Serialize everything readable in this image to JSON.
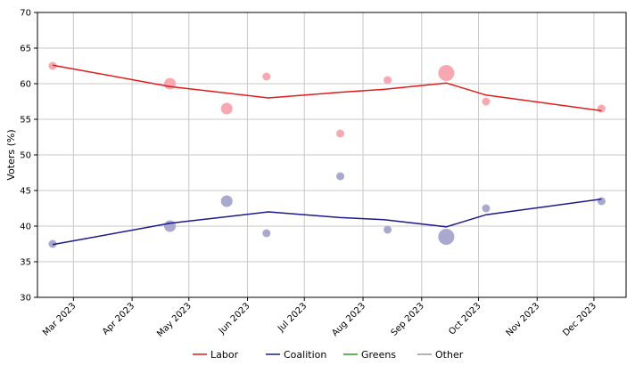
{
  "chart_data": {
    "type": "line",
    "title": "",
    "xlabel": "",
    "ylabel": "Voters (%)",
    "ylim": [
      30,
      70
    ],
    "yticks": [
      30,
      35,
      40,
      45,
      50,
      55,
      60,
      65,
      70
    ],
    "xlim": [
      "2023-02-10",
      "2023-12-18"
    ],
    "xticks": [
      {
        "date": "2023-03-01",
        "label": "Mar 2023"
      },
      {
        "date": "2023-04-01",
        "label": "Apr 2023"
      },
      {
        "date": "2023-05-01",
        "label": "May 2023"
      },
      {
        "date": "2023-06-01",
        "label": "Jun 2023"
      },
      {
        "date": "2023-07-01",
        "label": "Jul 2023"
      },
      {
        "date": "2023-08-01",
        "label": "Aug 2023"
      },
      {
        "date": "2023-09-01",
        "label": "Sep 2023"
      },
      {
        "date": "2023-10-01",
        "label": "Oct 2023"
      },
      {
        "date": "2023-11-01",
        "label": "Nov 2023"
      },
      {
        "date": "2023-12-01",
        "label": "Dec 2023"
      }
    ],
    "grid": true,
    "legend_position": "bottom",
    "series": [
      {
        "name": "Labor",
        "color": "#e31a1c",
        "dot_color": "#f7a8b0",
        "trend": [
          {
            "x": "2023-02-18",
            "y": 62.6
          },
          {
            "x": "2023-04-21",
            "y": 59.6
          },
          {
            "x": "2023-06-12",
            "y": 58.0
          },
          {
            "x": "2023-07-20",
            "y": 58.8
          },
          {
            "x": "2023-08-12",
            "y": 59.2
          },
          {
            "x": "2023-09-14",
            "y": 60.1
          },
          {
            "x": "2023-10-05",
            "y": 58.4
          },
          {
            "x": "2023-12-05",
            "y": 56.2
          }
        ],
        "points": [
          {
            "x": "2023-02-18",
            "y": 62.5,
            "size": "small"
          },
          {
            "x": "2023-04-21",
            "y": 60.0,
            "size": "medium"
          },
          {
            "x": "2023-05-21",
            "y": 56.5,
            "size": "medium"
          },
          {
            "x": "2023-06-11",
            "y": 61.0,
            "size": "small"
          },
          {
            "x": "2023-07-20",
            "y": 53.0,
            "size": "small"
          },
          {
            "x": "2023-08-14",
            "y": 60.5,
            "size": "small"
          },
          {
            "x": "2023-09-14",
            "y": 61.5,
            "size": "large"
          },
          {
            "x": "2023-10-05",
            "y": 57.5,
            "size": "small"
          },
          {
            "x": "2023-12-05",
            "y": 56.5,
            "size": "small"
          }
        ]
      },
      {
        "name": "Coalition",
        "color": "#1a1a8c",
        "dot_color": "#a9a9cf",
        "trend": [
          {
            "x": "2023-02-18",
            "y": 37.4
          },
          {
            "x": "2023-04-21",
            "y": 40.4
          },
          {
            "x": "2023-06-12",
            "y": 42.0
          },
          {
            "x": "2023-07-20",
            "y": 41.2
          },
          {
            "x": "2023-08-12",
            "y": 40.9
          },
          {
            "x": "2023-09-14",
            "y": 39.9
          },
          {
            "x": "2023-10-05",
            "y": 41.6
          },
          {
            "x": "2023-12-05",
            "y": 43.8
          }
        ],
        "points": [
          {
            "x": "2023-02-18",
            "y": 37.5,
            "size": "small"
          },
          {
            "x": "2023-04-21",
            "y": 40.0,
            "size": "medium"
          },
          {
            "x": "2023-05-21",
            "y": 43.5,
            "size": "medium"
          },
          {
            "x": "2023-06-11",
            "y": 39.0,
            "size": "small"
          },
          {
            "x": "2023-07-20",
            "y": 47.0,
            "size": "small"
          },
          {
            "x": "2023-08-14",
            "y": 39.5,
            "size": "small"
          },
          {
            "x": "2023-09-14",
            "y": 38.5,
            "size": "large"
          },
          {
            "x": "2023-10-05",
            "y": 42.5,
            "size": "small"
          },
          {
            "x": "2023-12-05",
            "y": 43.5,
            "size": "small"
          }
        ]
      },
      {
        "name": "Greens",
        "color": "#2ca02c",
        "trend": [],
        "points": []
      },
      {
        "name": "Other",
        "color": "#999999",
        "trend": [],
        "points": []
      }
    ]
  }
}
